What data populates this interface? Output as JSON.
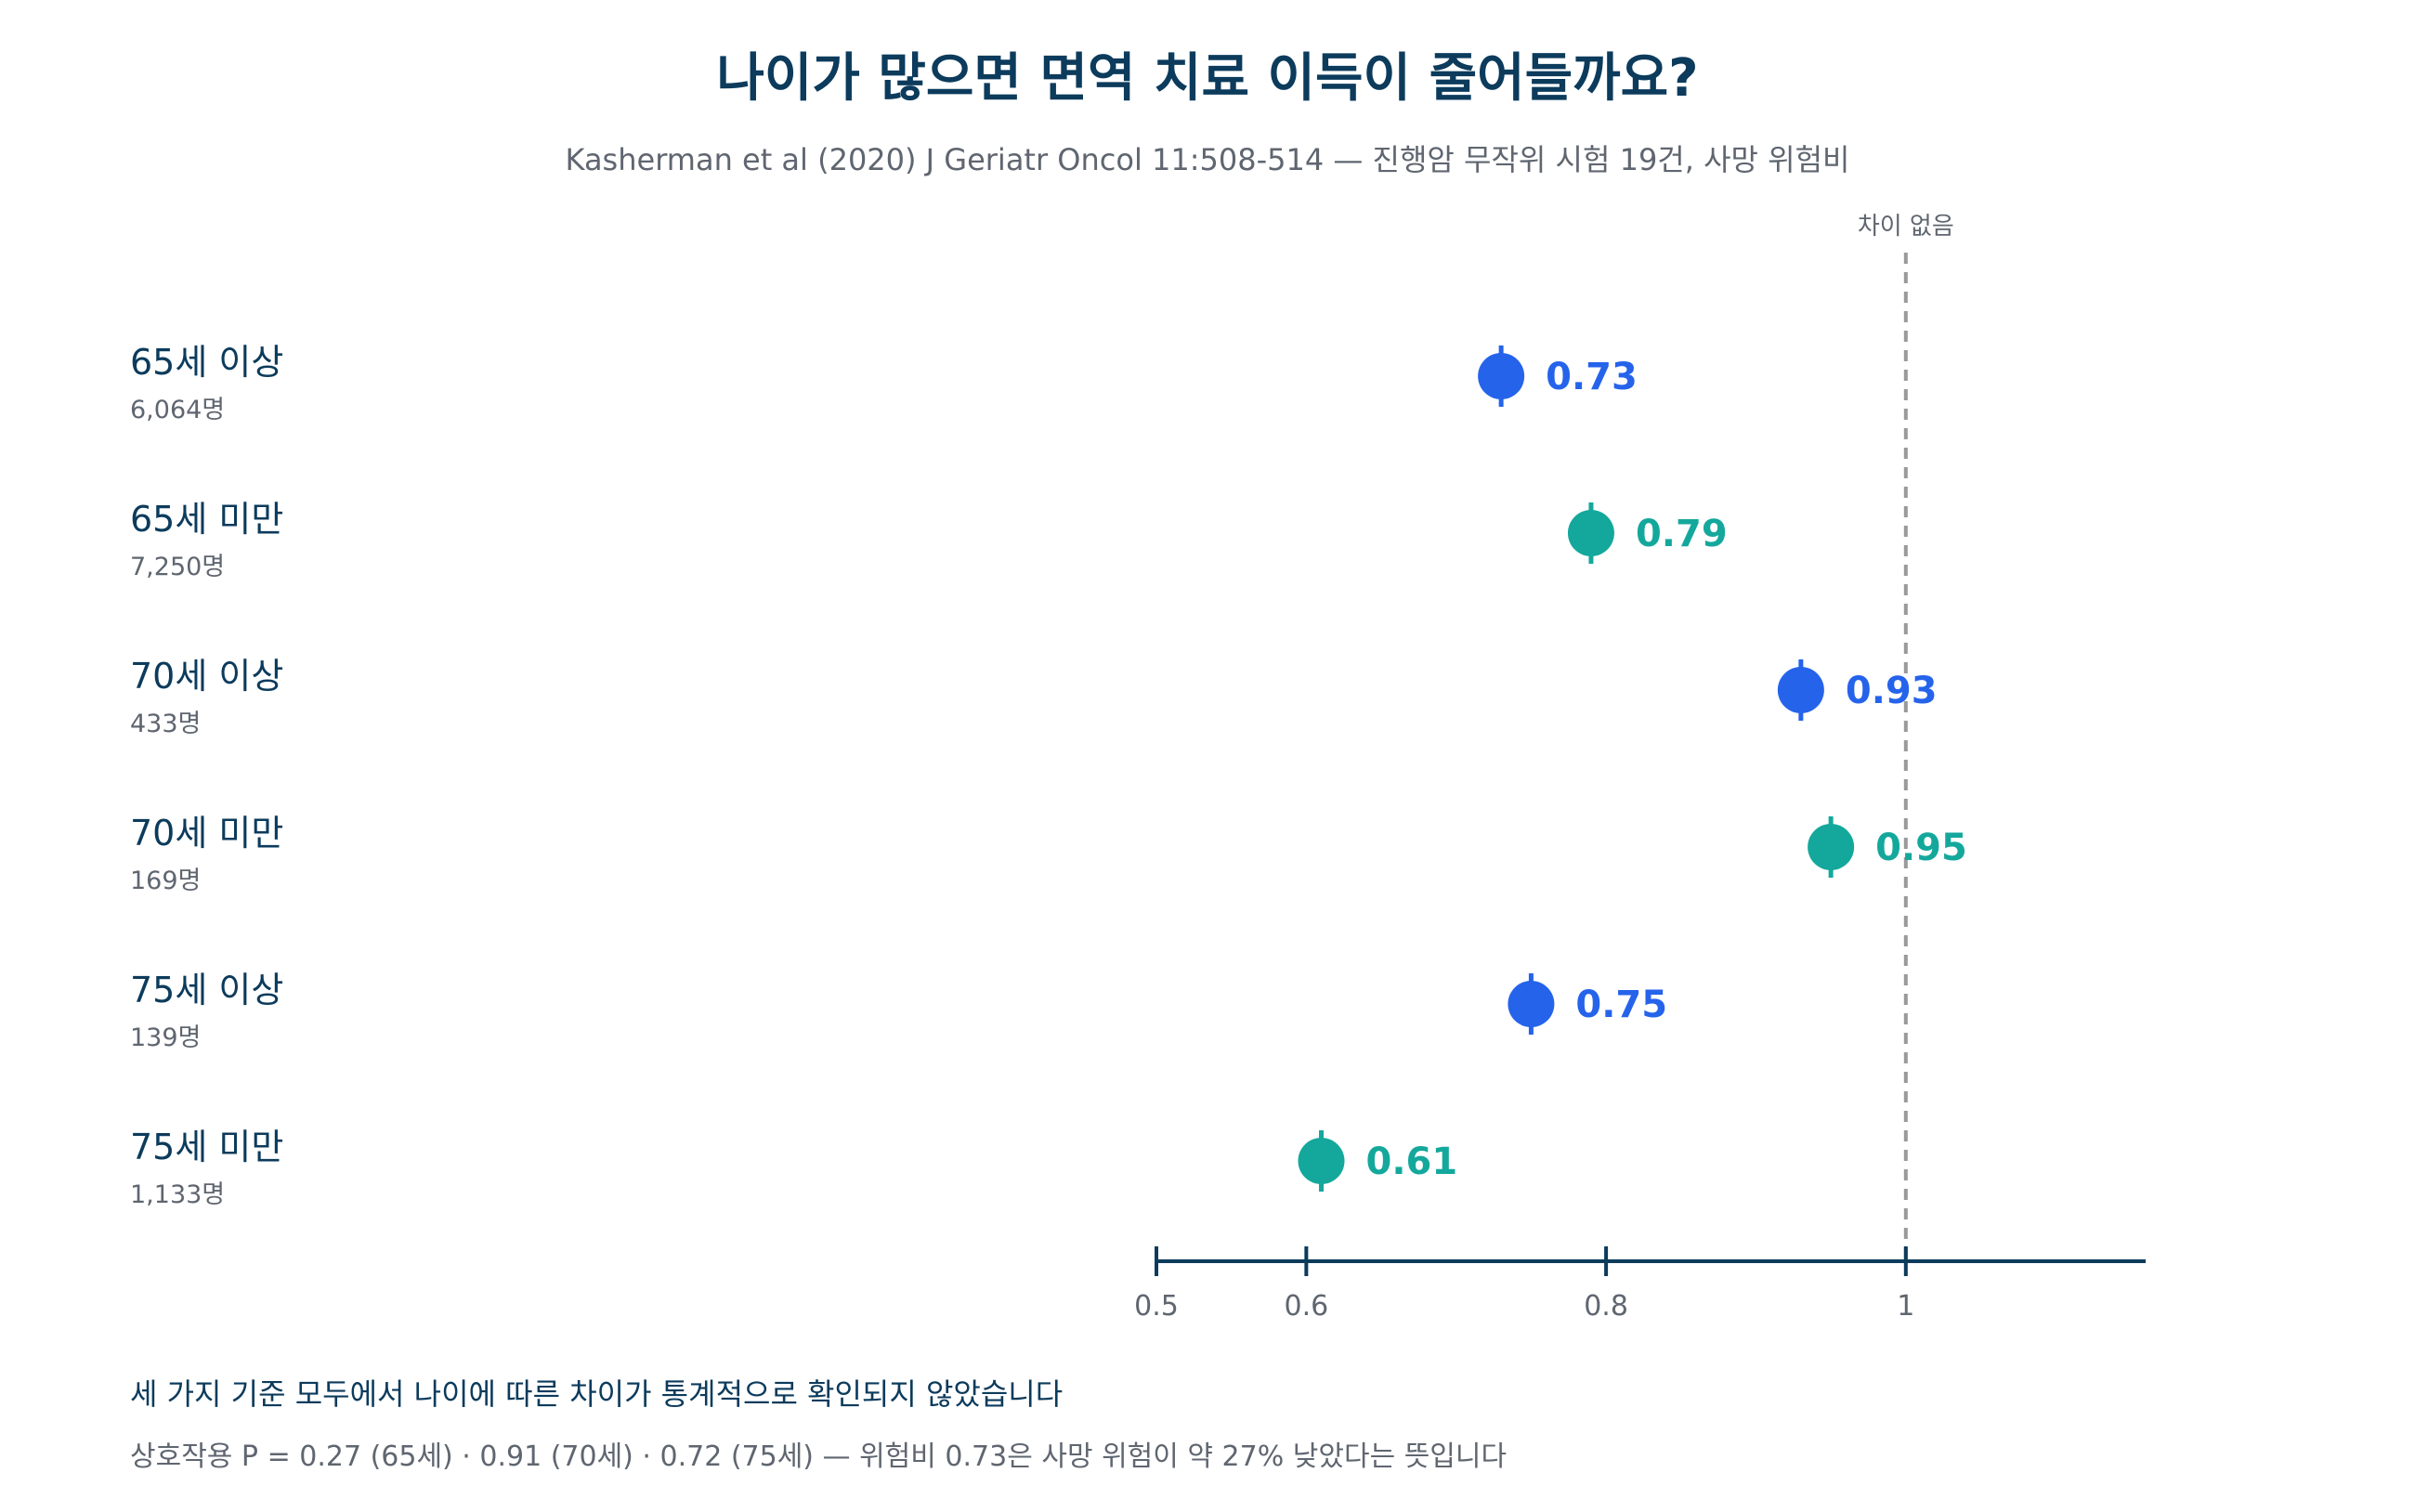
{
  "colors": {
    "older": "#2563eb",
    "younger": "#14a89c",
    "axis": "#0c3b5c",
    "reference": "#9a9a9a"
  },
  "chart_data": {
    "type": "scatter",
    "title": "나이가 많으면 면역 치료 이득이 줄어들까요?",
    "subtitle": "Kasherman et al (2020) J Geriatr Oncol 11:508-514 — 진행암 무작위 시험 19건, 사망 위험비",
    "reference_line": {
      "value": 1,
      "label": "차이 없음"
    },
    "xlim": [
      0.5,
      1.16
    ],
    "ticks": [
      {
        "value": 0.5,
        "label": "0.5"
      },
      {
        "value": 0.6,
        "label": "0.6"
      },
      {
        "value": 0.8,
        "label": "0.8"
      },
      {
        "value": 1,
        "label": "1"
      }
    ],
    "rows": [
      {
        "label": "65세 이상",
        "n": "6,064명",
        "value": 0.73,
        "value_label": "0.73",
        "group": "older"
      },
      {
        "label": "65세 미만",
        "n": "7,250명",
        "value": 0.79,
        "value_label": "0.79",
        "group": "younger"
      },
      {
        "label": "70세 이상",
        "n": "433명",
        "value": 0.93,
        "value_label": "0.93",
        "group": "older"
      },
      {
        "label": "70세 미만",
        "n": "169명",
        "value": 0.95,
        "value_label": "0.95",
        "group": "younger"
      },
      {
        "label": "75세 이상",
        "n": "139명",
        "value": 0.75,
        "value_label": "0.75",
        "group": "older"
      },
      {
        "label": "75세 미만",
        "n": "1,133명",
        "value": 0.61,
        "value_label": "0.61",
        "group": "younger"
      }
    ]
  },
  "footnote": {
    "main": "세 가지 기준 모두에서 나이에 따른 차이가 통계적으로 확인되지 않았습니다",
    "sub": "상호작용 P = 0.27 (65세) · 0.91 (70세) · 0.72 (75세) — 위험비 0.73은 사망 위험이 약 27% 낮았다는 뜻입니다"
  }
}
